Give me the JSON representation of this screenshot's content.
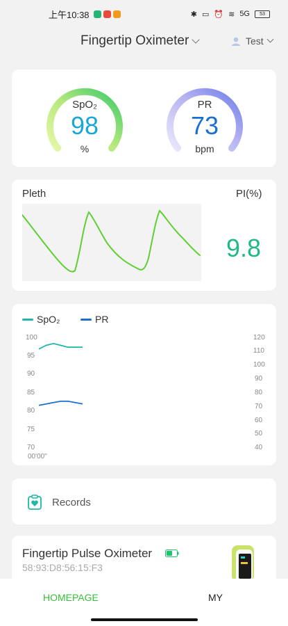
{
  "status_bar": {
    "time": "上午10:38",
    "signal": "5G",
    "battery": "53",
    "app_icons": [
      "#22b573",
      "#e84a3c",
      "#f39a1b"
    ]
  },
  "header": {
    "device_name": "Fingertip Oximeter",
    "user_name": "Test"
  },
  "vitals": {
    "spo2": {
      "label": "SpO₂",
      "value": "98",
      "unit": "%",
      "color": "#1aa6d6",
      "fill_fraction": 0.98
    },
    "pr": {
      "label": "PR",
      "value": "73",
      "unit": "bpm",
      "color": "#1a6fcf",
      "fill_fraction": 0.73
    }
  },
  "pleth": {
    "label": "Pleth",
    "pi_label": "PI(%)",
    "pi_value": "9.8"
  },
  "chart_data": {
    "type": "line",
    "x_tick_labels": [
      "00'00\""
    ],
    "series": [
      {
        "name": "SpO₂",
        "color": "#1fb8a6",
        "axis": "left",
        "x": [
          0,
          1,
          2,
          3,
          4,
          5,
          6
        ],
        "values": [
          97,
          98,
          98.5,
          98,
          97.5,
          97.5,
          97.5
        ]
      },
      {
        "name": "PR",
        "color": "#1a6fcf",
        "axis": "right",
        "x": [
          0,
          1,
          2,
          3,
          4,
          5,
          6
        ],
        "values": [
          71,
          72,
          73,
          74,
          74,
          73,
          72
        ]
      }
    ],
    "left_axis": {
      "ticks": [
        "100",
        "95",
        "90",
        "85",
        "80",
        "75",
        "70"
      ],
      "ylim": [
        70,
        100
      ]
    },
    "right_axis": {
      "ticks": [
        "120",
        "110",
        "100",
        "90",
        "80",
        "70",
        "60",
        "50",
        "40"
      ],
      "ylim": [
        40,
        120
      ]
    },
    "legend_position": "top-left"
  },
  "records": {
    "label": "Records"
  },
  "device": {
    "name": "Fingertip Pulse Oximeter",
    "mac": "58:93:D8:56:15:F3",
    "battery_color": "#1fc36b"
  },
  "tabs": {
    "home": "HOMEPAGE",
    "my": "MY"
  }
}
